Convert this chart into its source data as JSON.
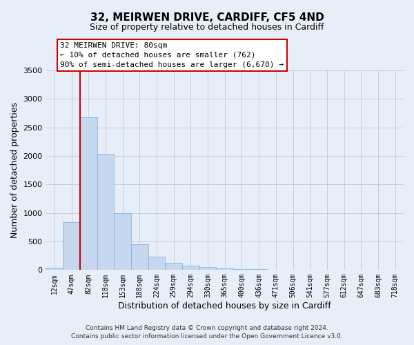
{
  "title1": "32, MEIRWEN DRIVE, CARDIFF, CF5 4ND",
  "title2": "Size of property relative to detached houses in Cardiff",
  "xlabel": "Distribution of detached houses by size in Cardiff",
  "ylabel": "Number of detached properties",
  "categories": [
    "12sqm",
    "47sqm",
    "82sqm",
    "118sqm",
    "153sqm",
    "188sqm",
    "224sqm",
    "259sqm",
    "294sqm",
    "330sqm",
    "365sqm",
    "400sqm",
    "436sqm",
    "471sqm",
    "506sqm",
    "541sqm",
    "577sqm",
    "612sqm",
    "647sqm",
    "683sqm",
    "718sqm"
  ],
  "values": [
    40,
    840,
    2680,
    2030,
    1000,
    450,
    235,
    130,
    75,
    55,
    30,
    20,
    12,
    8,
    5,
    3,
    2,
    1,
    1,
    0,
    0
  ],
  "bar_color": "#c5d8f0",
  "bar_edge_color": "#7aadd4",
  "vline_color": "#cc0000",
  "vline_x": 1.5,
  "annotation_text": "32 MEIRWEN DRIVE: 80sqm\n← 10% of detached houses are smaller (762)\n90% of semi-detached houses are larger (6,670) →",
  "annotation_box_color": "#ffffff",
  "annotation_box_edge_color": "#cc0000",
  "ylim": [
    0,
    3500
  ],
  "yticks": [
    0,
    500,
    1000,
    1500,
    2000,
    2500,
    3000,
    3500
  ],
  "grid_color": "#c0c8d8",
  "bg_color": "#e8eef8",
  "footer1": "Contains HM Land Registry data © Crown copyright and database right 2024.",
  "footer2": "Contains public sector information licensed under the Open Government Licence v3.0."
}
